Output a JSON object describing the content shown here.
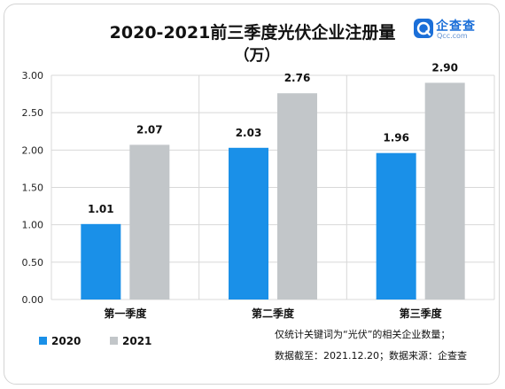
{
  "chart_data": {
    "type": "bar",
    "title": "2020-2021前三季度光伏企业注册量",
    "subtitle": "（万）",
    "categories": [
      "第一季度",
      "第二季度",
      "第三季度"
    ],
    "series": [
      {
        "name": "2020",
        "values": [
          1.01,
          2.03,
          1.96
        ],
        "color": "#1a90e8"
      },
      {
        "name": "2021",
        "values": [
          2.07,
          2.76,
          2.9
        ],
        "color": "#c2c6c9"
      }
    ],
    "ylim": [
      0,
      3
    ],
    "yticks": [
      "0.00",
      "0.50",
      "1.00",
      "1.50",
      "2.00",
      "2.50",
      "3.00"
    ],
    "grid": true,
    "legend": "bottom-left"
  },
  "notes": {
    "line1": "仅统计关键词为“光伏”的相关企业数量；",
    "line2": "数据截至：2021.12.20；数据来源：企查查"
  },
  "logo": {
    "name": "企查查",
    "sub": "Qcc.com"
  }
}
